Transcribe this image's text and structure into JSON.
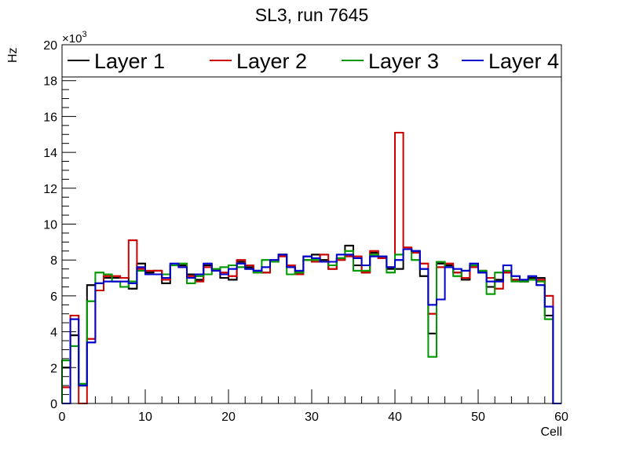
{
  "chart_data": {
    "type": "line",
    "style": "step-histogram",
    "title": "SL3, run 7645",
    "xlabel": "Cell",
    "ylabel": "Hz",
    "y_multiplier": "×10",
    "y_multiplier_exp": "3",
    "xlim": [
      0,
      60
    ],
    "ylim": [
      0,
      20000
    ],
    "x_ticks": [
      "0",
      "10",
      "20",
      "30",
      "40",
      "50",
      "60"
    ],
    "y_ticks": [
      "0",
      "2",
      "4",
      "6",
      "8",
      "10",
      "12",
      "14",
      "16",
      "18",
      "20"
    ],
    "legend_position": "top",
    "bin_width": 1,
    "series": [
      {
        "name": "Layer 1",
        "color": "#000000",
        "values": [
          2.0,
          3.8,
          1.0,
          6.6,
          6.7,
          7.0,
          7.0,
          7.0,
          6.4,
          7.8,
          7.3,
          7.4,
          6.7,
          7.7,
          7.7,
          7.2,
          6.9,
          7.7,
          7.5,
          7.0,
          6.9,
          7.9,
          7.6,
          7.4,
          7.3,
          7.9,
          8.3,
          7.6,
          7.3,
          8.2,
          8.3,
          8.0,
          7.5,
          8.1,
          8.8,
          7.7,
          7.3,
          8.4,
          8.1,
          7.5,
          7.5,
          8.6,
          8.5,
          7.1,
          3.9,
          7.8,
          7.7,
          7.3,
          6.9,
          7.6,
          7.3,
          6.5,
          6.9,
          7.3,
          6.9,
          6.8,
          7.0,
          7.0,
          4.9,
          0
        ]
      },
      {
        "name": "Layer 2",
        "color": "#cc0000",
        "values": [
          0.9,
          4.9,
          0,
          3.6,
          6.3,
          7.1,
          7.1,
          7.0,
          9.1,
          7.5,
          7.4,
          7.4,
          6.9,
          7.7,
          7.6,
          7.1,
          6.8,
          7.6,
          7.4,
          7.3,
          7.1,
          8.0,
          7.7,
          7.3,
          7.3,
          7.9,
          8.2,
          7.7,
          7.2,
          8.0,
          7.9,
          8.3,
          7.5,
          8.0,
          8.2,
          8.2,
          7.3,
          8.5,
          8.1,
          7.6,
          15.1,
          8.7,
          8.4,
          7.8,
          5.0,
          7.6,
          7.8,
          7.3,
          7.0,
          7.6,
          7.4,
          7.0,
          6.4,
          7.3,
          6.9,
          6.8,
          6.9,
          6.9,
          6.0,
          0
        ]
      },
      {
        "name": "Layer 3",
        "color": "#009900",
        "values": [
          2.4,
          3.2,
          1.1,
          5.7,
          7.3,
          7.2,
          6.8,
          6.5,
          6.8,
          7.4,
          7.2,
          7.2,
          7.2,
          7.7,
          7.8,
          6.7,
          7.1,
          7.2,
          7.5,
          7.6,
          7.7,
          7.6,
          7.5,
          7.3,
          8.0,
          7.9,
          8.3,
          7.2,
          7.3,
          8.0,
          8.0,
          7.9,
          7.7,
          8.1,
          8.5,
          7.4,
          7.4,
          8.3,
          8.2,
          7.3,
          8.3,
          8.6,
          8.0,
          7.5,
          2.6,
          7.9,
          7.6,
          7.1,
          7.4,
          7.7,
          7.4,
          6.1,
          7.3,
          7.4,
          6.8,
          6.8,
          6.9,
          6.8,
          4.7,
          0
        ]
      },
      {
        "name": "Layer 4",
        "color": "#0000cc",
        "values": [
          0,
          4.7,
          1.0,
          3.4,
          6.7,
          6.8,
          6.8,
          6.8,
          6.7,
          7.6,
          7.2,
          7.2,
          7.0,
          7.8,
          7.6,
          7.0,
          7.2,
          7.8,
          7.4,
          7.2,
          7.5,
          7.8,
          7.5,
          7.4,
          7.6,
          8.0,
          8.3,
          7.6,
          7.4,
          8.2,
          8.1,
          7.9,
          7.9,
          8.3,
          8.3,
          8.1,
          7.7,
          8.2,
          8.2,
          7.6,
          8.0,
          8.6,
          8.5,
          7.5,
          5.5,
          5.8,
          7.6,
          7.5,
          7.4,
          7.8,
          7.3,
          6.8,
          6.8,
          7.7,
          7.1,
          6.9,
          7.1,
          6.6,
          5.4,
          0
        ]
      }
    ],
    "values_unit": "thousands of Hz"
  }
}
